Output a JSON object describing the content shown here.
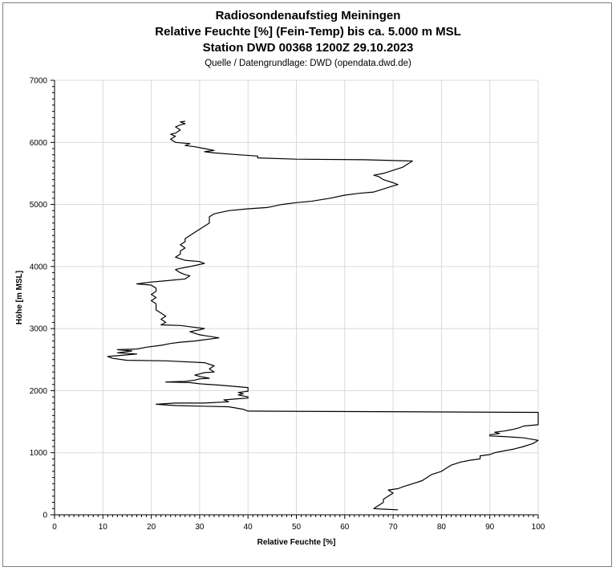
{
  "chart_data": {
    "type": "line",
    "title": "Radiosondenaufstieg Meiningen",
    "subtitle_1": "Relative Feuchte [%] (Fein-Temp) bis ca. 5.000 m MSL",
    "subtitle_2": "Station DWD 00368 1200Z 29.10.2023",
    "source": "Quelle / Datengrundlage: DWD (opendata.dwd.de)",
    "xlabel": "Relative Feuchte [%]",
    "ylabel": "Höhe [m MSL]",
    "xlim": [
      0,
      100
    ],
    "ylim": [
      0,
      7000
    ],
    "x_ticks": [
      0,
      10,
      20,
      30,
      40,
      50,
      60,
      70,
      80,
      90,
      100
    ],
    "y_ticks": [
      0,
      1000,
      2000,
      3000,
      4000,
      5000,
      6000,
      7000
    ],
    "grid": true,
    "series": [
      {
        "name": "",
        "color": "#000000",
        "points": [
          [
            71,
            80
          ],
          [
            68,
            90
          ],
          [
            66,
            100
          ],
          [
            67,
            150
          ],
          [
            68,
            200
          ],
          [
            68,
            250
          ],
          [
            69,
            300
          ],
          [
            70,
            350
          ],
          [
            69,
            400
          ],
          [
            71,
            420
          ],
          [
            72,
            450
          ],
          [
            74,
            500
          ],
          [
            76,
            550
          ],
          [
            77,
            600
          ],
          [
            78,
            650
          ],
          [
            80,
            700
          ],
          [
            81,
            750
          ],
          [
            82,
            800
          ],
          [
            84,
            850
          ],
          [
            86,
            880
          ],
          [
            88,
            900
          ],
          [
            88,
            950
          ],
          [
            90,
            970
          ],
          [
            91,
            1000
          ],
          [
            93,
            1030
          ],
          [
            95,
            1060
          ],
          [
            97,
            1100
          ],
          [
            99,
            1150
          ],
          [
            100,
            1200
          ],
          [
            97,
            1240
          ],
          [
            93,
            1260
          ],
          [
            90,
            1270
          ],
          [
            90,
            1290
          ],
          [
            92,
            1310
          ],
          [
            91,
            1330
          ],
          [
            93,
            1350
          ],
          [
            95,
            1380
          ],
          [
            96,
            1400
          ],
          [
            97,
            1430
          ],
          [
            100,
            1450
          ],
          [
            100,
            1500
          ],
          [
            100,
            1550
          ],
          [
            100,
            1600
          ],
          [
            100,
            1650
          ],
          [
            40,
            1670
          ],
          [
            39,
            1700
          ],
          [
            36,
            1740
          ],
          [
            25,
            1760
          ],
          [
            21,
            1780
          ],
          [
            25,
            1800
          ],
          [
            31,
            1800
          ],
          [
            36,
            1820
          ],
          [
            35,
            1850
          ],
          [
            38,
            1870
          ],
          [
            40,
            1880
          ],
          [
            40,
            1900
          ],
          [
            38,
            1930
          ],
          [
            39,
            1950
          ],
          [
            38,
            1970
          ],
          [
            40,
            1990
          ],
          [
            40,
            2050
          ],
          [
            34,
            2090
          ],
          [
            30,
            2110
          ],
          [
            28,
            2130
          ],
          [
            23,
            2140
          ],
          [
            27,
            2150
          ],
          [
            29,
            2170
          ],
          [
            30,
            2190
          ],
          [
            32,
            2200
          ],
          [
            30,
            2230
          ],
          [
            29,
            2250
          ],
          [
            30,
            2270
          ],
          [
            31,
            2290
          ],
          [
            33,
            2300
          ],
          [
            32,
            2350
          ],
          [
            33,
            2400
          ],
          [
            31,
            2450
          ],
          [
            23,
            2480
          ],
          [
            15,
            2490
          ],
          [
            12,
            2520
          ],
          [
            11,
            2550
          ],
          [
            14,
            2570
          ],
          [
            17,
            2590
          ],
          [
            13,
            2610
          ],
          [
            16,
            2640
          ],
          [
            13,
            2660
          ],
          [
            17,
            2670
          ],
          [
            19,
            2700
          ],
          [
            22,
            2730
          ],
          [
            24,
            2760
          ],
          [
            26,
            2780
          ],
          [
            29,
            2800
          ],
          [
            34,
            2850
          ],
          [
            30,
            2900
          ],
          [
            28,
            2950
          ],
          [
            30,
            2980
          ],
          [
            31,
            3000
          ],
          [
            28,
            3030
          ],
          [
            26,
            3050
          ],
          [
            22,
            3060
          ],
          [
            23,
            3100
          ],
          [
            22,
            3150
          ],
          [
            23,
            3200
          ],
          [
            22,
            3250
          ],
          [
            21,
            3300
          ],
          [
            21,
            3350
          ],
          [
            21,
            3400
          ],
          [
            20,
            3450
          ],
          [
            21,
            3500
          ],
          [
            20,
            3550
          ],
          [
            21,
            3600
          ],
          [
            21,
            3650
          ],
          [
            20,
            3700
          ],
          [
            17,
            3720
          ],
          [
            20,
            3750
          ],
          [
            23,
            3770
          ],
          [
            27,
            3800
          ],
          [
            28,
            3850
          ],
          [
            27,
            3870
          ],
          [
            26,
            3900
          ],
          [
            25,
            3950
          ],
          [
            26,
            3970
          ],
          [
            28,
            4000
          ],
          [
            31,
            4050
          ],
          [
            30,
            4080
          ],
          [
            27,
            4100
          ],
          [
            25,
            4150
          ],
          [
            26,
            4200
          ],
          [
            26,
            4250
          ],
          [
            27,
            4300
          ],
          [
            26,
            4350
          ],
          [
            27,
            4400
          ],
          [
            27,
            4450
          ],
          [
            28,
            4500
          ],
          [
            29,
            4550
          ],
          [
            30,
            4600
          ],
          [
            31,
            4650
          ],
          [
            32,
            4700
          ],
          [
            32,
            4750
          ],
          [
            32,
            4800
          ],
          [
            33,
            4850
          ],
          [
            36,
            4900
          ],
          [
            40,
            4930
          ],
          [
            44,
            4950
          ],
          [
            47,
            5000
          ],
          [
            50,
            5030
          ],
          [
            53,
            5050
          ],
          [
            57,
            5100
          ],
          [
            60,
            5150
          ],
          [
            63,
            5180
          ],
          [
            66,
            5200
          ],
          [
            68,
            5250
          ],
          [
            70,
            5300
          ],
          [
            71,
            5320
          ],
          [
            70,
            5350
          ],
          [
            68,
            5400
          ],
          [
            67,
            5450
          ],
          [
            66,
            5470
          ],
          [
            68,
            5500
          ],
          [
            70,
            5550
          ],
          [
            72,
            5600
          ],
          [
            73,
            5650
          ],
          [
            74,
            5700
          ],
          [
            64,
            5720
          ],
          [
            50,
            5730
          ],
          [
            42,
            5750
          ],
          [
            42,
            5780
          ],
          [
            38,
            5800
          ],
          [
            33,
            5830
          ],
          [
            31,
            5850
          ],
          [
            33,
            5870
          ],
          [
            31,
            5900
          ],
          [
            29,
            5930
          ],
          [
            27,
            5950
          ],
          [
            28,
            5980
          ],
          [
            25,
            6000
          ],
          [
            24,
            6050
          ],
          [
            25,
            6100
          ],
          [
            24,
            6130
          ],
          [
            25,
            6150
          ],
          [
            26,
            6200
          ],
          [
            25,
            6250
          ],
          [
            26,
            6280
          ],
          [
            27,
            6300
          ],
          [
            26,
            6330
          ],
          [
            27,
            6340
          ]
        ]
      }
    ]
  }
}
